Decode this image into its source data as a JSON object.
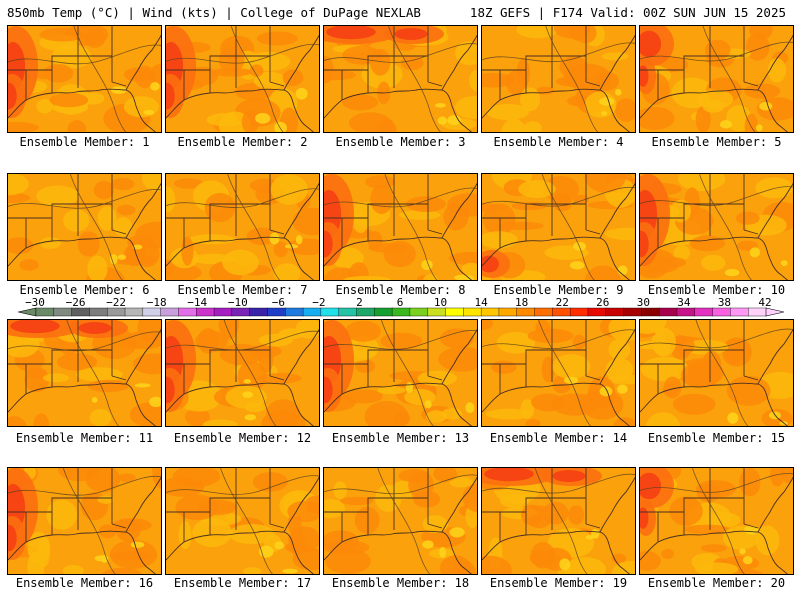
{
  "header": {
    "left": "850mb Temp (°C) | Wind (kts) | College of DuPage NEXLAB",
    "right": "18Z GEFS | F174 Valid: 00Z SUN JUN 15 2025"
  },
  "panels": [
    {
      "label": "Ensemble Member: 1",
      "hot": "west"
    },
    {
      "label": "Ensemble Member: 2",
      "hot": "west"
    },
    {
      "label": "Ensemble Member: 3",
      "hot": "north"
    },
    {
      "label": "Ensemble Member: 4",
      "hot": "none"
    },
    {
      "label": "Ensemble Member: 5",
      "hot": "northwest"
    },
    {
      "label": "Ensemble Member: 6",
      "hot": "none"
    },
    {
      "label": "Ensemble Member: 7",
      "hot": "none"
    },
    {
      "label": "Ensemble Member: 8",
      "hot": "west"
    },
    {
      "label": "Ensemble Member: 9",
      "hot": "southwest"
    },
    {
      "label": "Ensemble Member: 10",
      "hot": "west"
    },
    {
      "label": "Ensemble Member: 11",
      "hot": "north"
    },
    {
      "label": "Ensemble Member: 12",
      "hot": "west"
    },
    {
      "label": "Ensemble Member: 13",
      "hot": "west"
    },
    {
      "label": "Ensemble Member: 14",
      "hot": "none"
    },
    {
      "label": "Ensemble Member: 15",
      "hot": "none"
    },
    {
      "label": "Ensemble Member: 16",
      "hot": "west"
    },
    {
      "label": "Ensemble Member: 17",
      "hot": "none"
    },
    {
      "label": "Ensemble Member: 18",
      "hot": "none"
    },
    {
      "label": "Ensemble Member: 19",
      "hot": "north"
    },
    {
      "label": "Ensemble Member: 20",
      "hot": "northwest"
    }
  ],
  "colorbar": {
    "ticks": [
      "−30",
      "−26",
      "−22",
      "−18",
      "−14",
      "−10",
      "−6",
      "−2",
      "2",
      "6",
      "10",
      "14",
      "18",
      "22",
      "26",
      "30",
      "34",
      "38",
      "42"
    ],
    "colors": [
      "#6b8a68",
      "#7f8a80",
      "#5f5f5f",
      "#7d7d7d",
      "#9a9a9a",
      "#b6b6b6",
      "#cfcfe8",
      "#c9a0dc",
      "#e26fe8",
      "#cc33cc",
      "#a51fc0",
      "#7a23b8",
      "#3a23a8",
      "#1e3ec8",
      "#1f7ae0",
      "#18aef0",
      "#22e0e8",
      "#26c4a4",
      "#1ea868",
      "#16a032",
      "#3ab820",
      "#7cd020",
      "#c8e020",
      "#ffff00",
      "#ffe400",
      "#ffc600",
      "#ffa800",
      "#ff8a00",
      "#ff6e00",
      "#ff5200",
      "#ff2e00",
      "#e80a00",
      "#c80000",
      "#a80000",
      "#8a0000",
      "#a8004a",
      "#c8128a",
      "#e432c0",
      "#f862e0",
      "#ff98f4",
      "#ffd2fc"
    ]
  },
  "temperature_colors": {
    "base": "#fba10b",
    "warm": "#fb8a08",
    "warmer": "#fb6f10",
    "hot": "#f43d14",
    "cool": "#fcb80c",
    "coolest": "#fdd11a"
  }
}
